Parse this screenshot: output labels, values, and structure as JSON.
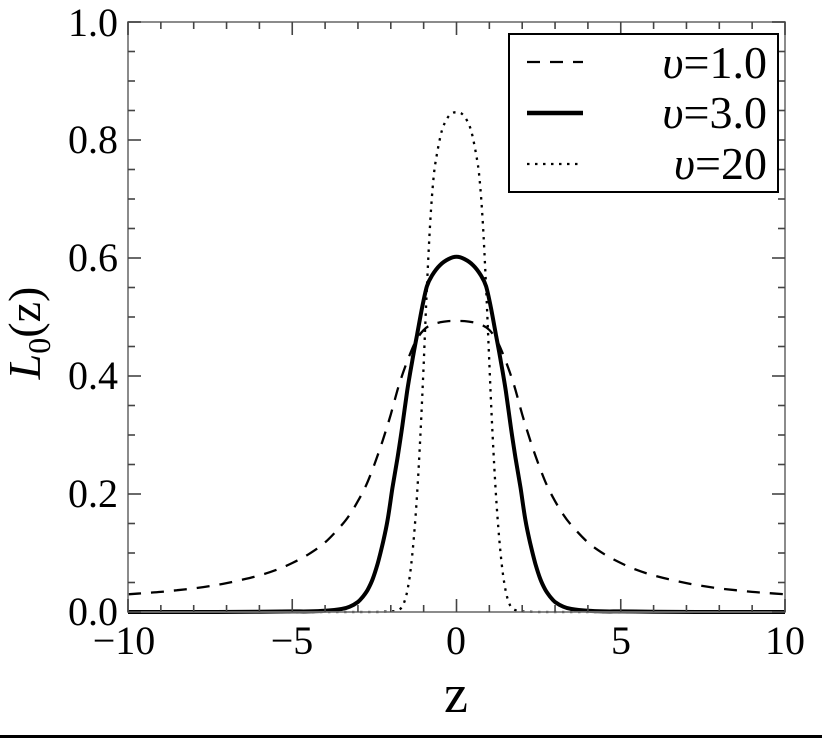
{
  "figure": {
    "background": "#ffffff",
    "frame_color": "#777777",
    "tick_color": "#444444",
    "curve_color": "#000000",
    "has_bottom_rule": true
  },
  "axes": {
    "x": {
      "label": "z",
      "min": -10,
      "max": 10,
      "major_ticks": [
        -10,
        -5,
        0,
        5,
        10
      ],
      "major_labels": [
        "−10",
        "−5",
        "0",
        "5",
        "10"
      ],
      "minor_step": 1
    },
    "y": {
      "label_main": "L",
      "label_sub": "0",
      "label_rest": "(z)",
      "min": 0,
      "max": 1,
      "major_ticks": [
        0,
        0.2,
        0.4,
        0.6,
        0.8,
        1.0
      ],
      "major_labels": [
        "0.0",
        "0.2",
        "0.4",
        "0.6",
        "0.8",
        "1.0"
      ],
      "minor_step": 0.05
    }
  },
  "legend": {
    "items": [
      {
        "symbol": "υ",
        "rest": "=1.0",
        "style": "dashed"
      },
      {
        "symbol": "υ",
        "rest": "=3.0",
        "style": "solid"
      },
      {
        "symbol": "υ",
        "rest": "=20",
        "style": "dotted"
      }
    ]
  },
  "chart_data": {
    "type": "line",
    "title": "",
    "xlabel": "z",
    "ylabel": "L0(z)",
    "xlim": [
      -10,
      10
    ],
    "ylim": [
      0,
      1
    ],
    "grid": false,
    "legend_position": "top-right",
    "series": [
      {
        "name": "υ=1.0",
        "style": "dashed",
        "peak_value": 0.49,
        "points": [
          [
            -10,
            0.03
          ],
          [
            -9.5,
            0.032
          ],
          [
            -9,
            0.034
          ],
          [
            -8.5,
            0.037
          ],
          [
            -8,
            0.04
          ],
          [
            -7.5,
            0.044
          ],
          [
            -7,
            0.049
          ],
          [
            -6.5,
            0.055
          ],
          [
            -6,
            0.062
          ],
          [
            -5.5,
            0.071
          ],
          [
            -5,
            0.083
          ],
          [
            -4.5,
            0.098
          ],
          [
            -4,
            0.118
          ],
          [
            -3.5,
            0.147
          ],
          [
            -3.25,
            0.165
          ],
          [
            -3,
            0.188
          ],
          [
            -2.75,
            0.215
          ],
          [
            -2.5,
            0.25
          ],
          [
            -2.25,
            0.29
          ],
          [
            -2,
            0.335
          ],
          [
            -1.75,
            0.385
          ],
          [
            -1.5,
            0.425
          ],
          [
            -1.25,
            0.458
          ],
          [
            -1,
            0.478
          ],
          [
            -0.75,
            0.487
          ],
          [
            -0.5,
            0.491
          ],
          [
            -0.25,
            0.493
          ],
          [
            0,
            0.493
          ],
          [
            0.25,
            0.493
          ],
          [
            0.5,
            0.491
          ],
          [
            0.75,
            0.487
          ],
          [
            1,
            0.478
          ],
          [
            1.25,
            0.458
          ],
          [
            1.5,
            0.425
          ],
          [
            1.75,
            0.385
          ],
          [
            2,
            0.335
          ],
          [
            2.25,
            0.29
          ],
          [
            2.5,
            0.25
          ],
          [
            2.75,
            0.215
          ],
          [
            3,
            0.188
          ],
          [
            3.25,
            0.165
          ],
          [
            3.5,
            0.147
          ],
          [
            4,
            0.118
          ],
          [
            4.5,
            0.098
          ],
          [
            5,
            0.083
          ],
          [
            5.5,
            0.071
          ],
          [
            6,
            0.062
          ],
          [
            6.5,
            0.055
          ],
          [
            7,
            0.049
          ],
          [
            7.5,
            0.044
          ],
          [
            8,
            0.04
          ],
          [
            8.5,
            0.037
          ],
          [
            9,
            0.034
          ],
          [
            9.5,
            0.032
          ],
          [
            10,
            0.03
          ]
        ]
      },
      {
        "name": "υ=3.0",
        "style": "solid",
        "peak_value": 0.6,
        "points": [
          [
            -10,
            0
          ],
          [
            -8,
            0
          ],
          [
            -6,
            0.0005
          ],
          [
            -5,
            0.001
          ],
          [
            -4.5,
            0.001
          ],
          [
            -4,
            0.002
          ],
          [
            -3.5,
            0.005
          ],
          [
            -3.25,
            0.009
          ],
          [
            -3,
            0.017
          ],
          [
            -2.85,
            0.026
          ],
          [
            -2.7,
            0.038
          ],
          [
            -2.55,
            0.056
          ],
          [
            -2.4,
            0.082
          ],
          [
            -2.25,
            0.115
          ],
          [
            -2.1,
            0.155
          ],
          [
            -1.95,
            0.21
          ],
          [
            -1.8,
            0.26
          ],
          [
            -1.65,
            0.315
          ],
          [
            -1.5,
            0.375
          ],
          [
            -1.35,
            0.425
          ],
          [
            -1.2,
            0.47
          ],
          [
            -1.05,
            0.515
          ],
          [
            -0.9,
            0.552
          ],
          [
            -0.75,
            0.57
          ],
          [
            -0.5,
            0.588
          ],
          [
            -0.25,
            0.598
          ],
          [
            0,
            0.602
          ],
          [
            0.25,
            0.598
          ],
          [
            0.5,
            0.588
          ],
          [
            0.75,
            0.57
          ],
          [
            0.9,
            0.552
          ],
          [
            1.05,
            0.515
          ],
          [
            1.2,
            0.47
          ],
          [
            1.35,
            0.425
          ],
          [
            1.5,
            0.375
          ],
          [
            1.65,
            0.315
          ],
          [
            1.8,
            0.26
          ],
          [
            1.95,
            0.21
          ],
          [
            2.1,
            0.155
          ],
          [
            2.25,
            0.115
          ],
          [
            2.4,
            0.082
          ],
          [
            2.55,
            0.056
          ],
          [
            2.7,
            0.038
          ],
          [
            2.85,
            0.026
          ],
          [
            3,
            0.017
          ],
          [
            3.25,
            0.009
          ],
          [
            3.5,
            0.005
          ],
          [
            4,
            0.002
          ],
          [
            4.5,
            0.001
          ],
          [
            5,
            0.001
          ],
          [
            6,
            0.0005
          ],
          [
            8,
            0
          ],
          [
            10,
            0
          ]
        ]
      },
      {
        "name": "υ=20",
        "style": "dotted",
        "peak_value": 0.85,
        "points": [
          [
            -10,
            0
          ],
          [
            -8,
            0
          ],
          [
            -6,
            0
          ],
          [
            -5,
            0
          ],
          [
            -4,
            0
          ],
          [
            -3,
            0
          ],
          [
            -2.5,
            0
          ],
          [
            -2.2,
            0.0005
          ],
          [
            -2,
            0.001
          ],
          [
            -1.85,
            0.002
          ],
          [
            -1.7,
            0.006
          ],
          [
            -1.6,
            0.015
          ],
          [
            -1.5,
            0.035
          ],
          [
            -1.4,
            0.07
          ],
          [
            -1.3,
            0.125
          ],
          [
            -1.2,
            0.2
          ],
          [
            -1.1,
            0.3
          ],
          [
            -1,
            0.42
          ],
          [
            -0.9,
            0.55
          ],
          [
            -0.8,
            0.66
          ],
          [
            -0.7,
            0.735
          ],
          [
            -0.6,
            0.775
          ],
          [
            -0.45,
            0.815
          ],
          [
            -0.3,
            0.835
          ],
          [
            -0.15,
            0.845
          ],
          [
            0,
            0.847
          ],
          [
            0.15,
            0.845
          ],
          [
            0.3,
            0.835
          ],
          [
            0.45,
            0.815
          ],
          [
            0.6,
            0.775
          ],
          [
            0.7,
            0.735
          ],
          [
            0.8,
            0.66
          ],
          [
            0.9,
            0.55
          ],
          [
            1,
            0.42
          ],
          [
            1.1,
            0.3
          ],
          [
            1.2,
            0.2
          ],
          [
            1.3,
            0.125
          ],
          [
            1.4,
            0.07
          ],
          [
            1.5,
            0.035
          ],
          [
            1.6,
            0.015
          ],
          [
            1.7,
            0.006
          ],
          [
            1.85,
            0.002
          ],
          [
            2,
            0.001
          ],
          [
            2.2,
            0.0005
          ],
          [
            2.5,
            0
          ],
          [
            3,
            0
          ],
          [
            4,
            0
          ],
          [
            5,
            0
          ],
          [
            6,
            0
          ],
          [
            8,
            0
          ],
          [
            10,
            0
          ]
        ]
      }
    ]
  }
}
